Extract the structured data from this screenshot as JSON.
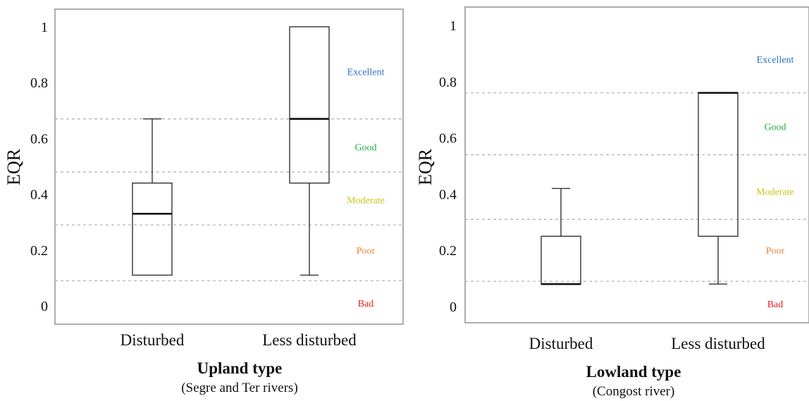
{
  "chart_data": [
    {
      "type": "box",
      "title": "Upland type",
      "subtitle": "(Segre and Ter rivers)",
      "ylabel": "EQR",
      "ylim": [
        0,
        1
      ],
      "yticks": [
        0,
        0.2,
        0.4,
        0.6,
        0.8,
        1
      ],
      "ytick_labels": [
        "0",
        "0.2",
        "0.4",
        "0.6",
        "0.8",
        "1"
      ],
      "categories": [
        "Disturbed",
        "Less disturbed"
      ],
      "boxes": [
        {
          "category": "Disturbed",
          "min": 0.11,
          "q1": 0.11,
          "median": 0.33,
          "q3": 0.44,
          "max": 0.67
        },
        {
          "category": "Less disturbed",
          "min": 0.11,
          "q1": 0.44,
          "median": 0.67,
          "q3": 1.0,
          "max": 1.0
        }
      ],
      "thresholds": [
        0.09,
        0.29,
        0.48,
        0.67
      ],
      "classes": [
        {
          "label": "Excellent",
          "color": "#2a70c4",
          "y": 0.84
        },
        {
          "label": "Good",
          "color": "#27a844",
          "y": 0.57
        },
        {
          "label": "Moderate",
          "color": "#c9c41e",
          "y": 0.38
        },
        {
          "label": "Poor",
          "color": "#e8863a",
          "y": 0.2
        },
        {
          "label": "Bad",
          "color": "#e02020",
          "y": 0.01
        }
      ],
      "grid": false
    },
    {
      "type": "box",
      "title": "Lowland type",
      "subtitle": "(Congost river)",
      "ylabel": "EQR",
      "ylim": [
        0,
        1
      ],
      "yticks": [
        0,
        0.2,
        0.4,
        0.6,
        0.8,
        1
      ],
      "ytick_labels": [
        "0",
        "0.2",
        "0.4",
        "0.6",
        "0.8",
        "1"
      ],
      "categories": [
        "Disturbed",
        "Less disturbed"
      ],
      "boxes": [
        {
          "category": "Disturbed",
          "min": 0.08,
          "q1": 0.08,
          "median": 0.08,
          "q3": 0.25,
          "max": 0.42
        },
        {
          "category": "Less disturbed",
          "min": 0.08,
          "q1": 0.25,
          "median": 0.76,
          "q3": 0.76,
          "max": 0.76
        }
      ],
      "thresholds": [
        0.09,
        0.31,
        0.54,
        0.76
      ],
      "classes": [
        {
          "label": "Excellent",
          "color": "#2a70c4",
          "y": 0.88
        },
        {
          "label": "Good",
          "color": "#27a844",
          "y": 0.64
        },
        {
          "label": "Moderate",
          "color": "#c9c41e",
          "y": 0.41
        },
        {
          "label": "Poor",
          "color": "#e8863a",
          "y": 0.2
        },
        {
          "label": "Bad",
          "color": "#e02020",
          "y": 0.01
        }
      ],
      "grid": false
    }
  ]
}
